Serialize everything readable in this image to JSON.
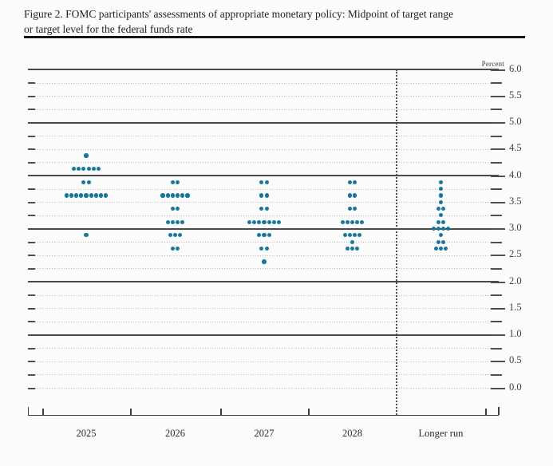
{
  "title": {
    "line1": "Figure 2. FOMC participants' assessments of appropriate monetary policy: Midpoint of target range",
    "line2": "or target level for the federal funds rate"
  },
  "chart_data": {
    "type": "scatter",
    "subtype": "fomc-dot-plot",
    "title": "Figure 2. FOMC participants' assessments of appropriate monetary policy: Midpoint of target range or target level for the federal funds rate",
    "ylabel": "Percent",
    "xlabel": "",
    "ylim": [
      0.0,
      6.0
    ],
    "y_gridline_step": 0.25,
    "y_label_step": 0.5,
    "solid_gridlines": [
      6.0,
      5.0,
      4.0,
      3.0,
      2.0,
      1.0
    ],
    "grid": true,
    "legend": false,
    "categories": [
      "2025",
      "2026",
      "2027",
      "2028",
      "Longer run"
    ],
    "columns": [
      {
        "label": "2025",
        "dots": [
          {
            "rate": 4.375,
            "count": 1
          },
          {
            "rate": 4.125,
            "count": 6
          },
          {
            "rate": 3.875,
            "count": 2
          },
          {
            "rate": 3.625,
            "count": 9
          },
          {
            "rate": 2.875,
            "count": 1
          }
        ]
      },
      {
        "label": "2026",
        "dots": [
          {
            "rate": 3.875,
            "count": 2
          },
          {
            "rate": 3.625,
            "count": 6
          },
          {
            "rate": 3.375,
            "count": 2
          },
          {
            "rate": 3.125,
            "count": 4
          },
          {
            "rate": 2.875,
            "count": 3
          },
          {
            "rate": 2.625,
            "count": 2
          }
        ]
      },
      {
        "label": "2027",
        "dots": [
          {
            "rate": 3.875,
            "count": 2
          },
          {
            "rate": 3.625,
            "count": 2
          },
          {
            "rate": 3.375,
            "count": 2
          },
          {
            "rate": 3.125,
            "count": 7
          },
          {
            "rate": 2.875,
            "count": 3
          },
          {
            "rate": 2.625,
            "count": 2
          },
          {
            "rate": 2.375,
            "count": 1
          }
        ]
      },
      {
        "label": "2028",
        "dots": [
          {
            "rate": 3.875,
            "count": 2
          },
          {
            "rate": 3.625,
            "count": 2
          },
          {
            "rate": 3.375,
            "count": 2
          },
          {
            "rate": 3.125,
            "count": 5
          },
          {
            "rate": 2.875,
            "count": 4
          },
          {
            "rate": 2.75,
            "count": 1
          },
          {
            "rate": 2.625,
            "count": 3
          }
        ]
      },
      {
        "label": "Longer run",
        "dots": [
          {
            "rate": 3.875,
            "count": 1
          },
          {
            "rate": 3.75,
            "count": 1
          },
          {
            "rate": 3.625,
            "count": 1
          },
          {
            "rate": 3.5,
            "count": 1
          },
          {
            "rate": 3.375,
            "count": 2
          },
          {
            "rate": 3.25,
            "count": 1
          },
          {
            "rate": 3.125,
            "count": 2
          },
          {
            "rate": 3.0,
            "count": 4
          },
          {
            "rate": 2.875,
            "count": 1
          },
          {
            "rate": 2.75,
            "count": 2
          },
          {
            "rate": 2.625,
            "count": 3
          }
        ]
      }
    ],
    "colors": {
      "dot": "#17779c",
      "solid_gridline": "#4a4a4a",
      "dotted_gridline": "#b9b9b9",
      "axis": "#3f3f3f",
      "text": "#2b2b2b"
    }
  }
}
